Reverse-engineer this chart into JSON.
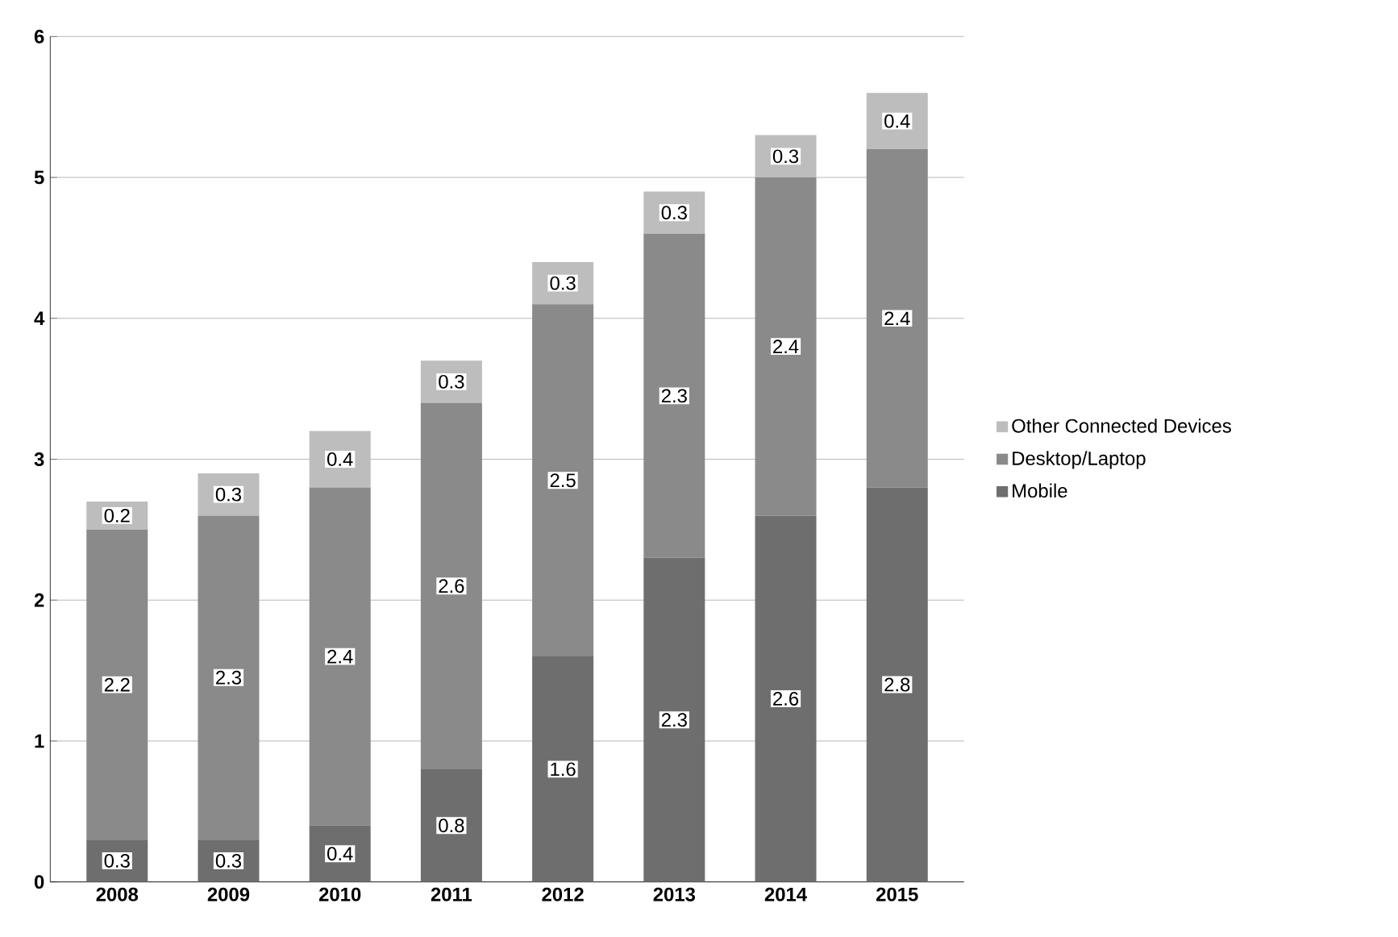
{
  "chart_data": {
    "type": "bar",
    "stacked": true,
    "categories": [
      "2008",
      "2009",
      "2010",
      "2011",
      "2012",
      "2013",
      "2014",
      "2015"
    ],
    "series": [
      {
        "name": "Mobile",
        "color": "#6e6e6e",
        "values": [
          0.3,
          0.3,
          0.4,
          0.8,
          1.6,
          2.3,
          2.6,
          2.8
        ]
      },
      {
        "name": "Desktop/Laptop",
        "color": "#8a8a8a",
        "values": [
          2.2,
          2.3,
          2.4,
          2.6,
          2.5,
          2.3,
          2.4,
          2.4
        ]
      },
      {
        "name": "Other Connected Devices",
        "color": "#bdbdbd",
        "values": [
          0.2,
          0.3,
          0.4,
          0.3,
          0.3,
          0.3,
          0.3,
          0.4
        ]
      }
    ],
    "ylim": [
      0,
      6
    ],
    "yticks": [
      0,
      1,
      2,
      3,
      4,
      5,
      6
    ],
    "grid": "y",
    "legend": "right",
    "data_labels": true
  }
}
